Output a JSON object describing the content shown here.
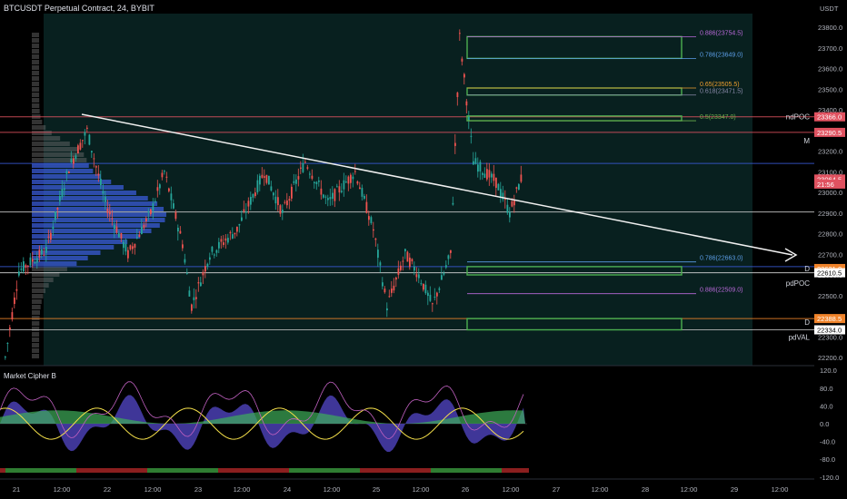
{
  "header": {
    "symbol_title": "BTCUSDT Perpetual Contract, 24, BYBIT"
  },
  "price_axis": {
    "currency": "USDT",
    "ticks": [
      "23800.0",
      "23700.0",
      "23600.0",
      "23500.0",
      "23400.0",
      "23300.0",
      "23200.0",
      "23100.0",
      "23000.0",
      "22900.0",
      "22800.0",
      "22700.0",
      "22600.0",
      "22500.0",
      "22400.0",
      "22300.0",
      "22200.0"
    ],
    "badges": [
      {
        "label": "23366.0",
        "price": 23366,
        "color": "#e05260"
      },
      {
        "label": "23290.5",
        "price": 23290.5,
        "color": "#e05260"
      },
      {
        "label": "23064.5",
        "price": 23064.5,
        "color": "#e05260"
      },
      {
        "label": "21:56",
        "price": 23040,
        "color": "#e05260"
      },
      {
        "label": "22631.0",
        "price": 22631,
        "color": "#f0832a"
      },
      {
        "label": "22610.5",
        "price": 22610.5,
        "color": "#ffffff",
        "text": "#000"
      },
      {
        "label": "22388.5",
        "price": 22388.5,
        "color": "#f0832a"
      },
      {
        "label": "22334.0",
        "price": 22334,
        "color": "#ffffff",
        "text": "#000"
      }
    ]
  },
  "indicator": {
    "name": "Market Cipher B",
    "ticks": [
      "120.0",
      "80.0",
      "40.0",
      "0.0",
      "-40.0",
      "-80.0",
      "-120.0"
    ]
  },
  "time_axis": {
    "ticks": [
      {
        "label": "21",
        "x": 18
      },
      {
        "label": "12:00",
        "x": 68
      },
      {
        "label": "22",
        "x": 118
      },
      {
        "label": "12:00",
        "x": 168
      },
      {
        "label": "23",
        "x": 218
      },
      {
        "label": "12:00",
        "x": 266
      },
      {
        "label": "24",
        "x": 316
      },
      {
        "label": "12:00",
        "x": 365
      },
      {
        "label": "25",
        "x": 414
      },
      {
        "label": "12:00",
        "x": 463
      },
      {
        "label": "26",
        "x": 512
      },
      {
        "label": "12:00",
        "x": 562
      },
      {
        "label": "27",
        "x": 612
      },
      {
        "label": "12:00",
        "x": 660
      },
      {
        "label": "28",
        "x": 710
      },
      {
        "label": "12:00",
        "x": 758
      },
      {
        "label": "29",
        "x": 808
      },
      {
        "label": "12:00",
        "x": 858
      }
    ]
  },
  "levels": [
    {
      "label": "0.886(23754.5)",
      "price": 23754.5,
      "color": "#b868d8"
    },
    {
      "label": "0.786(23649.0)",
      "price": 23649,
      "color": "#5c9ee8"
    },
    {
      "label": "0.65(23505.5)",
      "price": 23505.5,
      "color": "#f0a030"
    },
    {
      "label": "0.618(23471.5)",
      "price": 23471.5,
      "color": "#8a8aaa"
    },
    {
      "label": "0.5(23347.0)",
      "price": 23347,
      "color": "#6ab04c"
    },
    {
      "label": "0.786(22663.0)",
      "price": 22663,
      "color": "#5c9ee8"
    },
    {
      "label": "0.886(22509.0)",
      "price": 22509,
      "color": "#b868d8"
    }
  ],
  "side_labels": [
    {
      "label": "ndPOC",
      "price": 23366
    },
    {
      "label": "M",
      "price": 23250
    },
    {
      "label": "D",
      "price": 22631
    },
    {
      "label": "pdPOC",
      "price": 22560
    },
    {
      "label": "D",
      "price": 22372
    },
    {
      "label": "pdVAL",
      "price": 22300
    }
  ],
  "colors": {
    "bull": "#26a69a",
    "bear": "#ef5350",
    "zone": "#0f3b38",
    "box": "#4caf50"
  }
}
